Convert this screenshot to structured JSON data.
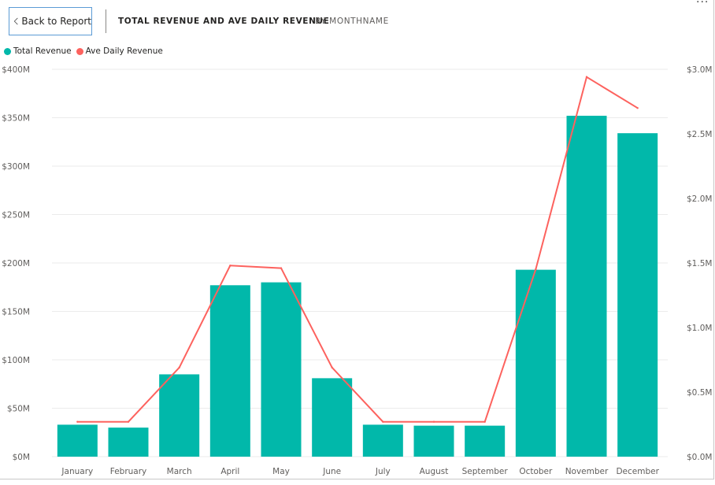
{
  "nav": {
    "back_label": "Back to Report",
    "more_label": "..."
  },
  "header": {
    "title": "TOTAL REVENUE AND AVE DAILY REVENUE",
    "subtitle": "BY MONTHNAME"
  },
  "colors": {
    "bar": "#01b8aa",
    "line": "#fd625e",
    "grid": "#ebebeb",
    "axis_text": "#605e5c"
  },
  "chart_data": {
    "type": "bar",
    "categories": [
      "January",
      "February",
      "March",
      "April",
      "May",
      "June",
      "July",
      "August",
      "September",
      "October",
      "November",
      "December"
    ],
    "series": [
      {
        "name": "Total Revenue",
        "type": "bar",
        "axis": "left",
        "values": [
          33,
          30,
          85,
          177,
          180,
          81,
          33,
          32,
          32,
          193,
          352,
          334
        ]
      },
      {
        "name": "Ave Daily Revenue",
        "type": "line",
        "axis": "right",
        "values": [
          0.27,
          0.27,
          0.69,
          1.48,
          1.46,
          0.69,
          0.27,
          0.27,
          0.27,
          1.45,
          2.94,
          2.7
        ]
      }
    ],
    "legend": {
      "position": "top-left",
      "items": [
        "Total Revenue",
        "Ave Daily Revenue"
      ]
    },
    "y_left": {
      "ylim": [
        0,
        400
      ],
      "ticks": [
        "$0M",
        "$50M",
        "$100M",
        "$150M",
        "$200M",
        "$250M",
        "$300M",
        "$350M",
        "$400M"
      ]
    },
    "y_right": {
      "ylim": [
        0,
        3.0
      ],
      "ticks": [
        "$0.0M",
        "$0.5M",
        "$1.0M",
        "$1.5M",
        "$2.0M",
        "$2.5M",
        "$3.0M"
      ]
    },
    "grid": true
  }
}
